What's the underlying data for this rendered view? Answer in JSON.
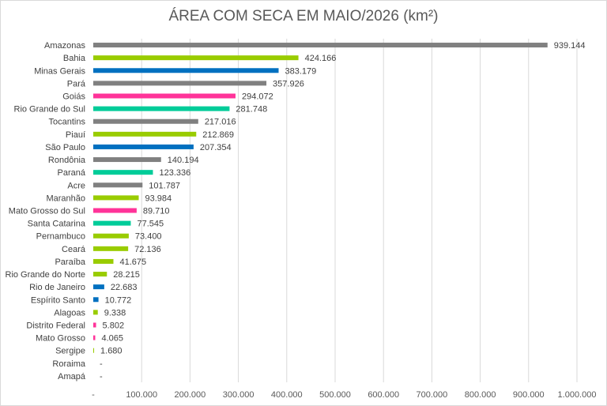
{
  "chart_data": {
    "type": "bar",
    "orientation": "horizontal",
    "title": "ÁREA COM SECA EM MAIO/2026 (km²)",
    "xlim": [
      0,
      1000000
    ],
    "grid": "vertical",
    "categories": [
      "Amazonas",
      "Bahia",
      "Minas Gerais",
      "Pará",
      "Goiás",
      "Rio Grande do Sul",
      "Tocantins",
      "Piauí",
      "São Paulo",
      "Rondônia",
      "Paraná",
      "Acre",
      "Maranhão",
      "Mato Grosso do Sul",
      "Santa Catarina",
      "Pernambuco",
      "Ceará",
      "Paraíba",
      "Rio Grande do Norte",
      "Rio de Janeiro",
      "Espírito Santo",
      "Alagoas",
      "Distrito Federal",
      "Mato Grosso",
      "Sergipe",
      "Roraima",
      "Amapá"
    ],
    "values": [
      939144,
      424166,
      383179,
      357926,
      294072,
      281748,
      217016,
      212869,
      207354,
      140194,
      123336,
      101787,
      93984,
      89710,
      77545,
      73400,
      72136,
      41675,
      28215,
      22683,
      10772,
      9338,
      5802,
      4065,
      1680,
      0,
      0
    ],
    "value_labels": [
      "939.144",
      "424.166",
      "383.179",
      "357.926",
      "294.072",
      "281.748",
      "217.016",
      "212.869",
      "207.354",
      "140.194",
      "123.336",
      "101.787",
      "93.984",
      "89.710",
      "77.545",
      "73.400",
      "72.136",
      "41.675",
      "28.215",
      "22.683",
      "10.772",
      "9.338",
      "5.802",
      "4.065",
      "1.680",
      "-",
      "-"
    ],
    "colors": [
      "#808080",
      "#99cc00",
      "#0070c0",
      "#808080",
      "#ff3399",
      "#00cc99",
      "#808080",
      "#99cc00",
      "#0070c0",
      "#808080",
      "#00cc99",
      "#808080",
      "#99cc00",
      "#ff3399",
      "#00cc99",
      "#99cc00",
      "#99cc00",
      "#99cc00",
      "#99cc00",
      "#0070c0",
      "#0070c0",
      "#99cc00",
      "#ff3399",
      "#ff3399",
      "#99cc00",
      "#808080",
      "#808080"
    ],
    "x_ticks": [
      0,
      100000,
      200000,
      300000,
      400000,
      500000,
      600000,
      700000,
      800000,
      900000,
      1000000
    ],
    "x_tick_labels": [
      "-",
      "100.000",
      "200.000",
      "300.000",
      "400.000",
      "500.000",
      "600.000",
      "700.000",
      "800.000",
      "900.000",
      "1.000.000"
    ]
  }
}
